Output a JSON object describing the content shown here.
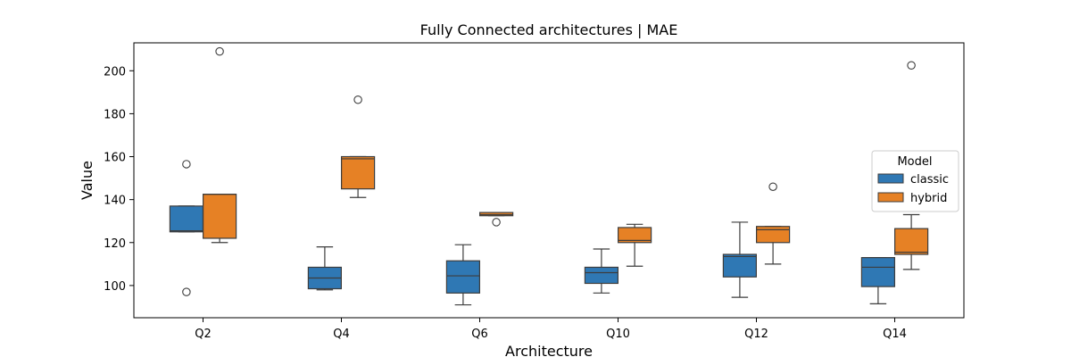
{
  "chart_data": {
    "type": "box",
    "title": "Fully Connected architectures | MAE",
    "xlabel": "Architecture",
    "ylabel": "Value",
    "categories": [
      "Q2",
      "Q4",
      "Q6",
      "Q10",
      "Q12",
      "Q14"
    ],
    "ylim": [
      85,
      213
    ],
    "yticks": [
      "100",
      "120",
      "140",
      "160",
      "180",
      "200"
    ],
    "legend": {
      "title": "Model",
      "position": "right"
    },
    "series": [
      {
        "name": "classic",
        "color": "#2f78b4",
        "boxes": [
          {
            "whislo": 125,
            "q1": 125,
            "med": 125.5,
            "q3": 137,
            "whishi": 137,
            "fliers": [
              156.5,
              97
            ]
          },
          {
            "whislo": 98,
            "q1": 98.5,
            "med": 103.5,
            "q3": 108.5,
            "whishi": 118,
            "fliers": []
          },
          {
            "whislo": 91,
            "q1": 96.5,
            "med": 104.5,
            "q3": 111.5,
            "whishi": 119,
            "fliers": []
          },
          {
            "whislo": 96.5,
            "q1": 101,
            "med": 106,
            "q3": 108.5,
            "whishi": 117,
            "fliers": []
          },
          {
            "whislo": 94.5,
            "q1": 104,
            "med": 113.5,
            "q3": 114.5,
            "whishi": 129.5,
            "fliers": []
          },
          {
            "whislo": 91.5,
            "q1": 99.5,
            "med": 108.5,
            "q3": 113,
            "whishi": 113,
            "fliers": []
          }
        ]
      },
      {
        "name": "hybrid",
        "color": "#e68125",
        "boxes": [
          {
            "whislo": 120,
            "q1": 122,
            "med": 142.5,
            "q3": 142.5,
            "whishi": 142.5,
            "fliers": [
              209
            ]
          },
          {
            "whislo": 141,
            "q1": 145,
            "med": 159,
            "q3": 160,
            "whishi": 160,
            "fliers": [
              186.5
            ]
          },
          {
            "whislo": 132.5,
            "q1": 132.5,
            "med": 133,
            "q3": 134,
            "whishi": 134,
            "fliers": [
              129.5
            ]
          },
          {
            "whislo": 109,
            "q1": 120,
            "med": 121,
            "q3": 127,
            "whishi": 128.5,
            "fliers": []
          },
          {
            "whislo": 110,
            "q1": 120,
            "med": 126,
            "q3": 127.5,
            "whishi": 127.5,
            "fliers": [
              146
            ]
          },
          {
            "whislo": 107.5,
            "q1": 114.5,
            "med": 115.5,
            "q3": 126.5,
            "whishi": 133,
            "fliers": [
              202.5
            ]
          }
        ]
      }
    ]
  }
}
